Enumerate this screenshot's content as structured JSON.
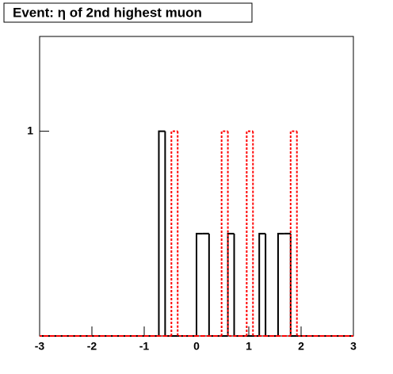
{
  "chart_data": {
    "type": "histogram",
    "title": "Event: η of 2nd highest muon",
    "bins": [
      -3,
      -2.88,
      -2.76,
      -2.64,
      -2.52,
      -2.4,
      -2.28,
      -2.16,
      -2.04,
      -1.92,
      -1.8,
      -1.68,
      -1.56,
      -1.44,
      -1.32,
      -1.2,
      -1.08,
      -0.96,
      -0.84,
      -0.72,
      -0.6,
      -0.48,
      -0.36,
      -0.24,
      -0.12,
      0,
      0.12,
      0.24,
      0.36,
      0.48,
      0.6,
      0.72,
      0.84,
      0.96,
      1.08,
      1.2,
      1.32,
      1.44,
      1.56,
      1.68,
      1.8,
      1.92,
      2.04,
      2.16,
      2.28,
      2.4,
      2.52,
      2.64,
      2.76,
      2.88,
      3
    ],
    "series": [
      {
        "color": "#000000",
        "values": [
          0,
          0,
          0,
          0,
          0,
          0,
          0,
          0,
          0,
          0,
          0,
          0,
          0,
          0,
          0,
          0,
          0,
          0,
          0,
          1,
          0,
          0,
          0,
          0,
          0,
          0.5,
          0.5,
          0,
          0,
          0,
          0.5,
          0,
          0,
          0,
          0,
          0.5,
          0,
          0,
          0.5,
          0.5,
          0,
          0,
          0,
          0,
          0,
          0,
          0,
          0,
          0,
          0
        ]
      },
      {
        "color": "#ff0000",
        "dashed": true,
        "values": [
          0,
          0,
          0,
          0,
          0,
          0,
          0,
          0,
          0,
          0,
          0,
          0,
          0,
          0,
          0,
          0,
          0,
          0,
          0,
          0,
          0,
          1,
          0,
          0,
          0,
          0,
          0,
          0,
          0,
          1,
          0,
          0,
          0,
          1,
          0,
          0,
          0,
          0,
          0,
          0,
          1,
          0,
          0,
          0,
          0,
          0,
          0,
          0,
          0,
          0
        ]
      }
    ],
    "xlim": [
      -3,
      3
    ],
    "xticks": [
      -3,
      -2,
      -1,
      0,
      1,
      2,
      3
    ],
    "ylim": [
      0.25,
      1.9
    ],
    "yticks": [
      1
    ],
    "ylog": true
  }
}
